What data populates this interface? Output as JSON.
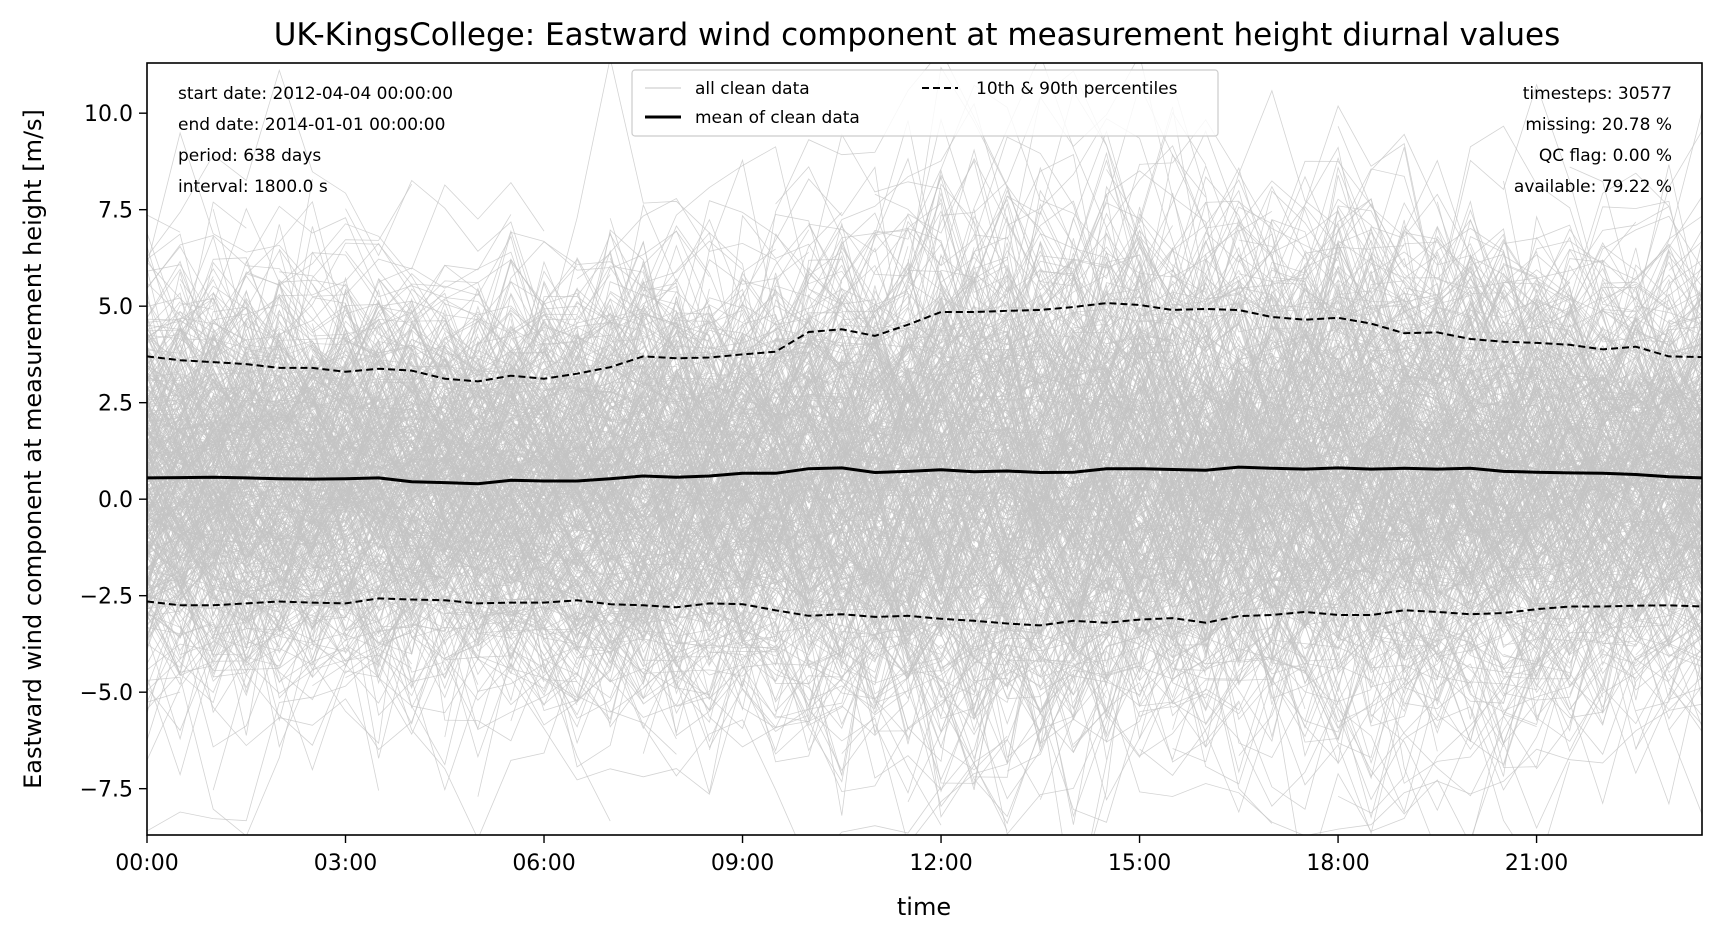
{
  "chart_data": {
    "type": "line",
    "title": "UK-KingsCollege: Eastward wind component at measurement height diurnal values",
    "xlabel": "time",
    "ylabel": "Eastward wind component at measurement height [m/s]",
    "xlim_hours": [
      0,
      23.5
    ],
    "ylim": [
      -8.7,
      11.3
    ],
    "x_ticks": [
      "00:00",
      "03:00",
      "06:00",
      "09:00",
      "12:00",
      "15:00",
      "18:00",
      "21:00"
    ],
    "x_tick_hours": [
      0,
      3,
      6,
      9,
      12,
      15,
      18,
      21
    ],
    "y_ticks": [
      10.0,
      7.5,
      5.0,
      2.5,
      0.0,
      -2.5,
      -5.0,
      -7.5
    ],
    "y_tick_labels": [
      "10.0",
      "7.5",
      "5.0",
      "2.5",
      "0.0",
      "−2.5",
      "−5.0",
      "−7.5"
    ],
    "x_hours": [
      0,
      0.5,
      1,
      1.5,
      2,
      2.5,
      3,
      3.5,
      4,
      4.5,
      5,
      5.5,
      6,
      6.5,
      7,
      7.5,
      8,
      8.5,
      9,
      9.5,
      10,
      10.5,
      11,
      11.5,
      12,
      12.5,
      13,
      13.5,
      14,
      14.5,
      15,
      15.5,
      16,
      16.5,
      17,
      17.5,
      18,
      18.5,
      19,
      19.5,
      20,
      20.5,
      21,
      21.5,
      22,
      22.5,
      23,
      23.5
    ],
    "series": [
      {
        "name": "mean of clean data",
        "style": "solid",
        "values": [
          0.55,
          0.56,
          0.57,
          0.55,
          0.53,
          0.52,
          0.53,
          0.55,
          0.45,
          0.43,
          0.4,
          0.49,
          0.47,
          0.47,
          0.53,
          0.6,
          0.57,
          0.6,
          0.67,
          0.67,
          0.79,
          0.81,
          0.69,
          0.72,
          0.76,
          0.71,
          0.73,
          0.69,
          0.7,
          0.79,
          0.79,
          0.77,
          0.75,
          0.83,
          0.8,
          0.78,
          0.81,
          0.78,
          0.8,
          0.78,
          0.8,
          0.72,
          0.7,
          0.68,
          0.67,
          0.64,
          0.58,
          0.55
        ]
      },
      {
        "name": "10th & 90th percentiles",
        "style": "dashed",
        "values": [
          3.7,
          3.6,
          3.55,
          3.5,
          3.4,
          3.4,
          3.3,
          3.38,
          3.33,
          3.12,
          3.05,
          3.2,
          3.12,
          3.25,
          3.42,
          3.7,
          3.65,
          3.67,
          3.75,
          3.82,
          4.33,
          4.4,
          4.23,
          4.52,
          4.85,
          4.85,
          4.88,
          4.9,
          4.98,
          5.08,
          5.03,
          4.9,
          4.93,
          4.9,
          4.72,
          4.65,
          4.7,
          4.55,
          4.3,
          4.32,
          4.15,
          4.08,
          4.05,
          4.0,
          3.88,
          3.95,
          3.7,
          3.68
        ]
      },
      {
        "name": "10th percentile",
        "style": "dashed",
        "values": [
          -2.65,
          -2.75,
          -2.75,
          -2.7,
          -2.65,
          -2.68,
          -2.7,
          -2.57,
          -2.6,
          -2.62,
          -2.7,
          -2.68,
          -2.68,
          -2.62,
          -2.72,
          -2.75,
          -2.8,
          -2.7,
          -2.72,
          -2.88,
          -3.02,
          -2.98,
          -3.05,
          -3.02,
          -3.1,
          -3.15,
          -3.22,
          -3.27,
          -3.15,
          -3.2,
          -3.12,
          -3.08,
          -3.2,
          -3.03,
          -3.0,
          -2.92,
          -3.0,
          -3.0,
          -2.88,
          -2.92,
          -2.98,
          -2.95,
          -2.85,
          -2.78,
          -2.78,
          -2.76,
          -2.75,
          -2.78
        ]
      }
    ],
    "background_series_name": "all clean data",
    "legend": {
      "placement": "top-center",
      "entries": [
        "all clean data",
        "mean of clean data",
        "10th & 90th percentiles"
      ]
    },
    "annotations_left": [
      "start date: 2012-04-04 00:00:00",
      "end date: 2014-01-01 00:00:00",
      "period: 638 days",
      "interval: 1800.0 s"
    ],
    "annotations_right": [
      "timesteps: 30577",
      "missing: 20.78 %",
      "QC flag: 0.00 %",
      "available: 79.22 %"
    ],
    "colors": {
      "clean_data": "#c4c4c4",
      "mean": "#000000",
      "percentiles": "#000000"
    },
    "grid": false
  }
}
